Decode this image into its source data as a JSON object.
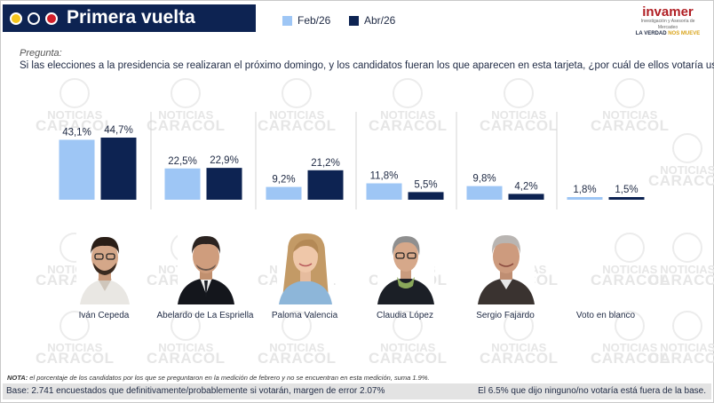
{
  "header": {
    "title": "Primera vuelta"
  },
  "legend": [
    {
      "label": "Feb/26",
      "color": "#9ec6f5"
    },
    {
      "label": "Abr/26",
      "color": "#0d2352"
    }
  ],
  "logo": {
    "name": "invamer",
    "subtitle": "Investigación y Asesoría de Mercadeo",
    "tagline_a": "LA VERDAD ",
    "tagline_b": "NOS MUEVE"
  },
  "watermark": {
    "line1": "NOTICIAS",
    "line2": "CARACOL"
  },
  "question": {
    "label": "Pregunta:",
    "text": "Si las elecciones a la presidencia se realizaran el próximo domingo, y los candidatos fueran los que aparecen en esta tarjeta, ¿por cuál de ellos votaría usted?"
  },
  "chart_data": {
    "type": "bar",
    "categories": [
      "Iván Cepeda",
      "Abelardo de La Espriella",
      "Paloma Valencia",
      "Claudia López",
      "Sergio Fajardo",
      "Voto en blanco"
    ],
    "series": [
      {
        "name": "Feb/26",
        "values": [
          43.1,
          22.5,
          9.2,
          11.8,
          9.8,
          1.8
        ],
        "labels": [
          "43,1%",
          "22,5%",
          "9,2%",
          "11,8%",
          "9,8%",
          "1,8%"
        ],
        "color": "#9ec6f5"
      },
      {
        "name": "Abr/26",
        "values": [
          44.7,
          22.9,
          21.2,
          5.5,
          4.2,
          1.5
        ],
        "labels": [
          "44,7%",
          "22,9%",
          "21,2%",
          "5,5%",
          "4,2%",
          "1,5%"
        ],
        "color": "#0d2352"
      }
    ],
    "ylim": [
      0,
      44.7
    ],
    "legend_position": "top",
    "grid": false
  },
  "note": {
    "bold": "NOTA:",
    "text": " el porcentaje de los candidatos por los que se preguntaron en la medición de febrero y no se encuentran en esta medición, suma 1.9%."
  },
  "footer": {
    "left": "Base: 2.741 encuestados que definitivamente/probablemente si votarán, margen de error 2.07%",
    "right": "El 6.5% que dijo ninguno/no votaría está fuera de la base."
  }
}
